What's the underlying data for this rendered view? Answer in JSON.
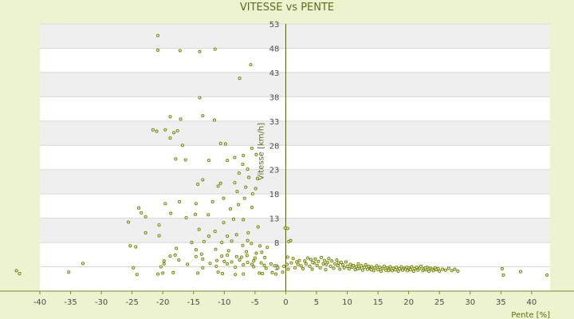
{
  "chart_data": {
    "type": "scatter",
    "title": "VITESSE vs PENTE",
    "xlabel": "Pente [%]",
    "ylabel": "Vitesse [km/h]",
    "xlim": [
      -40,
      43
    ],
    "ylim": [
      -2,
      53
    ],
    "x_ticks": [
      -40,
      -35,
      -30,
      -25,
      -20,
      -15,
      -10,
      -5,
      0,
      5,
      10,
      15,
      20,
      25,
      30,
      35,
      40
    ],
    "y_ticks": [
      3,
      8,
      13,
      18,
      23,
      28,
      33,
      38,
      43,
      48,
      53
    ],
    "grid": "horizontal-bands",
    "legend": "none",
    "marker_color": "#6b7d12",
    "points": [
      [
        -20.8,
        50.6
      ],
      [
        -20.8,
        47.6
      ],
      [
        -17.2,
        47.5
      ],
      [
        -14,
        47.3
      ],
      [
        -11.5,
        47.8
      ],
      [
        -5.7,
        44.6
      ],
      [
        -7.5,
        41.8
      ],
      [
        -14,
        37.8
      ],
      [
        -13.5,
        34.1
      ],
      [
        -18.8,
        33.9
      ],
      [
        -17.1,
        33.4
      ],
      [
        -11.6,
        33.2
      ],
      [
        -21.6,
        31.2
      ],
      [
        -21,
        30.9
      ],
      [
        -19.6,
        31.2
      ],
      [
        -18.2,
        30.6
      ],
      [
        -17.6,
        31
      ],
      [
        -18.8,
        29.5
      ],
      [
        -16.8,
        28
      ],
      [
        -10.6,
        28.4
      ],
      [
        -9.8,
        28.3
      ],
      [
        -6.9,
        25.9
      ],
      [
        -7,
        24.1
      ],
      [
        -8.3,
        25.5
      ],
      [
        -9.5,
        24.9
      ],
      [
        -12.5,
        24.9
      ],
      [
        -16.3,
        25
      ],
      [
        -17.9,
        25.2
      ],
      [
        -5.5,
        27.4
      ],
      [
        -4.8,
        26.1
      ],
      [
        -6.2,
        23.1
      ],
      [
        -7.6,
        22.3
      ],
      [
        -8.3,
        20.3
      ],
      [
        -6,
        21.4
      ],
      [
        -4.6,
        21.2
      ],
      [
        -6.5,
        19.4
      ],
      [
        -14.3,
        20
      ],
      [
        -13.5,
        20.9
      ],
      [
        -11,
        19.6
      ],
      [
        -10.6,
        20.2
      ],
      [
        -7.9,
        18.5
      ],
      [
        -5.4,
        18
      ],
      [
        -4.9,
        19.1
      ],
      [
        -6.7,
        17.1
      ],
      [
        -10.1,
        17.1
      ],
      [
        -17.3,
        16.4
      ],
      [
        -19.6,
        16
      ],
      [
        -14.6,
        16
      ],
      [
        -11.9,
        16.4
      ],
      [
        -7.7,
        15.8
      ],
      [
        -5.5,
        15.2
      ],
      [
        -9,
        14.9
      ],
      [
        -23.9,
        15.1
      ],
      [
        -23.5,
        14.1
      ],
      [
        -18.7,
        14
      ],
      [
        -14.7,
        13.8
      ],
      [
        -12.6,
        13.7
      ],
      [
        -16.2,
        13.1
      ],
      [
        -8.5,
        12.8
      ],
      [
        -6.9,
        12.7
      ],
      [
        -10.1,
        12.1
      ],
      [
        -22.8,
        13.3
      ],
      [
        -25.6,
        12.2
      ],
      [
        -20.6,
        11.6
      ],
      [
        -14.1,
        10.7
      ],
      [
        -11.5,
        10.3
      ],
      [
        -4.5,
        11.2
      ],
      [
        -6.1,
        10
      ],
      [
        -8,
        9.6
      ],
      [
        -9.5,
        9.3
      ],
      [
        -22.8,
        10
      ],
      [
        -20.6,
        9.4
      ],
      [
        -12.5,
        9.3
      ],
      [
        -8.8,
        8.3
      ],
      [
        -6.2,
        8.4
      ],
      [
        -15.3,
        8
      ],
      [
        -13.3,
        8.2
      ],
      [
        -10.4,
        8
      ],
      [
        -7,
        7.4
      ],
      [
        -5.6,
        7.8
      ],
      [
        -4.2,
        7.3
      ],
      [
        -3,
        7
      ],
      [
        -25.3,
        7.3
      ],
      [
        -24.4,
        7.1
      ],
      [
        -17.8,
        6.8
      ],
      [
        -14.6,
        6.5
      ],
      [
        -11.4,
        6.6
      ],
      [
        -9.3,
        6.3
      ],
      [
        -6.4,
        6.1
      ],
      [
        -4.8,
        5.8
      ],
      [
        -3.9,
        6
      ],
      [
        -18.8,
        5.2
      ],
      [
        -18,
        5.4
      ],
      [
        -14.6,
        5.1
      ],
      [
        -13.7,
        5.6
      ],
      [
        -10.4,
        5.2
      ],
      [
        -9.5,
        5.4
      ],
      [
        -8,
        5.1
      ],
      [
        -7.2,
        5
      ],
      [
        -6.3,
        5.3
      ],
      [
        -5,
        4.8
      ],
      [
        -3.4,
        4.9
      ],
      [
        -19.8,
        4.2
      ],
      [
        -17.4,
        4.4
      ],
      [
        -13.5,
        4.6
      ],
      [
        -11.2,
        4.3
      ],
      [
        -10,
        4.1
      ],
      [
        -8.8,
        4
      ],
      [
        -7.5,
        4.4
      ],
      [
        -6.2,
        3.9
      ],
      [
        -5.2,
        4.2
      ],
      [
        -4,
        3.8
      ],
      [
        -33,
        3.7
      ],
      [
        -19.8,
        3.6
      ],
      [
        -16,
        3.5
      ],
      [
        -12.3,
        3.7
      ],
      [
        -9.5,
        3.6
      ],
      [
        -6.9,
        3.4
      ],
      [
        -5.5,
        3.5
      ],
      [
        -3.5,
        3.3
      ],
      [
        -2.4,
        3.6
      ],
      [
        -1.8,
        3.2
      ],
      [
        -24.8,
        2.8
      ],
      [
        -20.3,
        3
      ],
      [
        -13.5,
        2.8
      ],
      [
        -11.3,
        3.1
      ],
      [
        -8.2,
        2.9
      ],
      [
        -5.2,
        3
      ],
      [
        -3.2,
        2.7
      ],
      [
        -1.3,
        2.8
      ],
      [
        -0.3,
        3.1
      ],
      [
        -35.3,
        1.9
      ],
      [
        -24.2,
        1.4
      ],
      [
        -20.8,
        1.5
      ],
      [
        -20,
        1.7
      ],
      [
        -18.3,
        1.8
      ],
      [
        -14.3,
        1.7
      ],
      [
        -11,
        1.9
      ],
      [
        -10.3,
        1.6
      ],
      [
        -8.2,
        1.4
      ],
      [
        -6.9,
        1.5
      ],
      [
        -4.3,
        1.7
      ],
      [
        -3.8,
        1.6
      ],
      [
        -2.2,
        1.8
      ],
      [
        -1.6,
        1.5
      ],
      [
        -0.5,
        1.9
      ],
      [
        -43.8,
        2.2
      ],
      [
        -43.3,
        1.6
      ],
      [
        42.5,
        1.3
      ],
      [
        38.2,
        2
      ],
      [
        35.2,
        2.6
      ],
      [
        35.4,
        1.3
      ],
      [
        -0.1,
        11
      ],
      [
        0.3,
        10.9
      ],
      [
        0.5,
        8.2
      ],
      [
        0.8,
        8.4
      ],
      [
        0.3,
        5
      ],
      [
        0.2,
        3.5
      ],
      [
        0.4,
        2.5
      ],
      [
        0.9,
        3.8
      ],
      [
        1.2,
        4.7
      ],
      [
        1.5,
        2.8
      ],
      [
        1.8,
        4
      ],
      [
        2.2,
        4.3
      ],
      [
        2.5,
        3.2
      ],
      [
        2.8,
        2.6
      ],
      [
        3.1,
        4.2
      ],
      [
        3.3,
        3.6
      ],
      [
        3.6,
        4.8
      ],
      [
        3.9,
        3.1
      ],
      [
        4.1,
        4.5
      ],
      [
        4.3,
        2.5
      ],
      [
        4.6,
        3.8
      ],
      [
        4.8,
        4.6
      ],
      [
        5.1,
        3.3
      ],
      [
        5.3,
        4.1
      ],
      [
        5.6,
        2.8
      ],
      [
        5.8,
        4.9
      ],
      [
        6.1,
        3.6
      ],
      [
        6.3,
        4.3
      ],
      [
        6.5,
        2.4
      ],
      [
        6.8,
        3.9
      ],
      [
        7,
        4.7
      ],
      [
        7.3,
        3.1
      ],
      [
        7.5,
        4.2
      ],
      [
        7.8,
        2.7
      ],
      [
        8,
        3.6
      ],
      [
        8.3,
        4.4
      ],
      [
        8.5,
        3.2
      ],
      [
        8.8,
        2.5
      ],
      [
        9,
        3.9
      ],
      [
        9.3,
        3.4
      ],
      [
        9.5,
        2.8
      ],
      [
        9.8,
        4
      ],
      [
        10,
        3.1
      ],
      [
        10.3,
        2.6
      ],
      [
        10.5,
        3.5
      ],
      [
        10.8,
        2.9
      ],
      [
        11,
        3.3
      ],
      [
        11.3,
        2.4
      ],
      [
        11.5,
        3
      ],
      [
        11.8,
        3.6
      ],
      [
        12,
        2.7
      ],
      [
        12.3,
        3.2
      ],
      [
        12.5,
        2.3
      ],
      [
        12.8,
        2.9
      ],
      [
        13,
        3.4
      ],
      [
        13.3,
        2.5
      ],
      [
        13.5,
        3.1
      ],
      [
        13.8,
        2.6
      ],
      [
        14,
        3
      ],
      [
        14.3,
        2.2
      ],
      [
        14.5,
        2.8
      ],
      [
        14.8,
        3.2
      ],
      [
        15,
        2.4
      ],
      [
        15.3,
        2.9
      ],
      [
        15.5,
        2.1
      ],
      [
        15.8,
        2.7
      ],
      [
        16,
        3.1
      ],
      [
        16.3,
        2.3
      ],
      [
        16.5,
        2.8
      ],
      [
        16.8,
        2.5
      ],
      [
        17,
        3
      ],
      [
        17.3,
        2.2
      ],
      [
        17.5,
        2.7
      ],
      [
        17.8,
        2.4
      ],
      [
        18,
        2.9
      ],
      [
        18.3,
        2.1
      ],
      [
        18.5,
        2.6
      ],
      [
        18.8,
        3
      ],
      [
        19,
        2.3
      ],
      [
        19.3,
        2.7
      ],
      [
        19.5,
        2.5
      ],
      [
        19.8,
        2.2
      ],
      [
        20,
        2.8
      ],
      [
        20.3,
        2.4
      ],
      [
        20.5,
        3
      ],
      [
        20.8,
        2.1
      ],
      [
        21,
        2.6
      ],
      [
        21.3,
        2.9
      ],
      [
        21.5,
        2.3
      ],
      [
        21.8,
        2.7
      ],
      [
        22,
        3.1
      ],
      [
        22.3,
        2.2
      ],
      [
        22.5,
        2.6
      ],
      [
        22.8,
        2.4
      ],
      [
        23,
        2.9
      ],
      [
        23.3,
        2.1
      ],
      [
        23.5,
        2.7
      ],
      [
        23.8,
        2.5
      ],
      [
        24,
        2.2
      ],
      [
        24.3,
        2.8
      ],
      [
        24.5,
        2.4
      ],
      [
        24.8,
        2.6
      ],
      [
        25,
        2.1
      ],
      [
        25.5,
        2.5
      ],
      [
        26,
        2.3
      ],
      [
        26.5,
        2.7
      ],
      [
        27,
        2.2
      ],
      [
        27.5,
        2.5
      ],
      [
        28,
        2.1
      ],
      [
        2,
        3.5
      ],
      [
        4.4,
        3.9
      ],
      [
        6.6,
        3.5
      ],
      [
        8.6,
        3.8
      ],
      [
        11.7,
        2.6
      ],
      [
        13.9,
        2.4
      ],
      [
        16.7,
        2.2
      ],
      [
        19.7,
        2.9
      ],
      [
        22.7,
        2.8
      ]
    ]
  }
}
